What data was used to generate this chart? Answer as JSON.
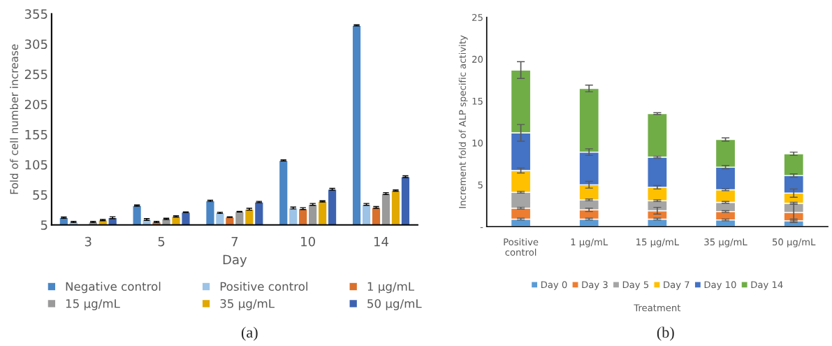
{
  "chart_data": [
    {
      "type": "bar",
      "ylabel": "Fold of cell number increase",
      "xlabel": "Day",
      "categories": [
        "3",
        "5",
        "7",
        "10",
        "14"
      ],
      "ylim": [
        5,
        355
      ],
      "yticks": [
        5,
        55,
        105,
        155,
        205,
        255,
        305,
        355
      ],
      "grid": false,
      "legend": "bottom",
      "annotations": [
        "(a)"
      ],
      "series": [
        {
          "name": "Negative control",
          "color": "#4a86c5",
          "values": [
            17,
            37,
            45,
            112,
            336
          ],
          "errors": [
            1,
            1,
            1,
            1,
            1
          ]
        },
        {
          "name": "Positive control",
          "color": "#9dc3e6",
          "values": [
            10,
            14,
            25,
            33,
            39
          ],
          "errors": [
            1,
            1.5,
            1,
            1.5,
            1.5
          ]
        },
        {
          "name": "1 µg/mL",
          "color": "#d9702c",
          "values": [
            null,
            10,
            18,
            32,
            34
          ],
          "errors": [
            null,
            1,
            0.5,
            1.5,
            1.5
          ]
        },
        {
          "name": "15 µg/mL",
          "color": "#9a9a9a",
          "values": [
            10,
            15,
            27,
            39,
            57
          ],
          "errors": [
            1,
            1,
            0.5,
            1.5,
            1.5
          ]
        },
        {
          "name": "35 µg/mL",
          "color": "#e0a800",
          "values": [
            13,
            19,
            31,
            44,
            62
          ],
          "errors": [
            1,
            1,
            1.5,
            1,
            1
          ]
        },
        {
          "name": "50 µg/mL",
          "color": "#3d63b0",
          "values": [
            17,
            26,
            43,
            64,
            85
          ],
          "errors": [
            1.5,
            0.5,
            1,
            1.5,
            1.5
          ]
        }
      ]
    },
    {
      "type": "bar",
      "stacked": true,
      "ylabel": "Increment fold of ALP specific activity",
      "xlabel": "Treatment",
      "categories": [
        "Positive\ncontrol",
        "1 µg/mL",
        "15 µg/mL",
        "35 µg/mL",
        "50 µg/mL"
      ],
      "ylim": [
        0,
        25
      ],
      "yticks": [
        {
          "value": 0,
          "label": "-"
        },
        5,
        10,
        15,
        20,
        25
      ],
      "grid": false,
      "legend": "bottom",
      "annotations": [
        "(b)"
      ],
      "series": [
        {
          "name": "Day 0",
          "color": "#5b9bd5",
          "values": [
            0.9,
            0.9,
            0.9,
            0.8,
            0.7
          ],
          "errors": [
            0.1,
            0.1,
            0.1,
            0.1,
            0.2
          ]
        },
        {
          "name": "Day 3",
          "color": "#ed7d31",
          "values": [
            1.3,
            1.1,
            1.0,
            1.0,
            1.0
          ],
          "errors": [
            0.1,
            0.2,
            0.4,
            0.1,
            1.0
          ]
        },
        {
          "name": "Day 5",
          "color": "#a5a5a5",
          "values": [
            1.9,
            1.2,
            1.2,
            1.1,
            1.1
          ],
          "errors": [
            0.1,
            0.1,
            0.1,
            0.1,
            0.1
          ]
        },
        {
          "name": "Day 7",
          "color": "#ffc000",
          "values": [
            2.6,
            1.8,
            1.6,
            1.5,
            1.2
          ],
          "errors": [
            0.3,
            0.4,
            0.2,
            0.1,
            0.5
          ]
        },
        {
          "name": "Day 10",
          "color": "#4472c4",
          "values": [
            4.5,
            3.9,
            3.6,
            2.7,
            2.1
          ],
          "errors": [
            1.0,
            0.4,
            0.1,
            0.2,
            0.2
          ]
        },
        {
          "name": "Day 14",
          "color": "#70ad47",
          "values": [
            7.5,
            7.6,
            5.2,
            3.3,
            2.6
          ],
          "errors": [
            1.0,
            0.4,
            0.1,
            0.2,
            0.2
          ]
        }
      ]
    }
  ]
}
